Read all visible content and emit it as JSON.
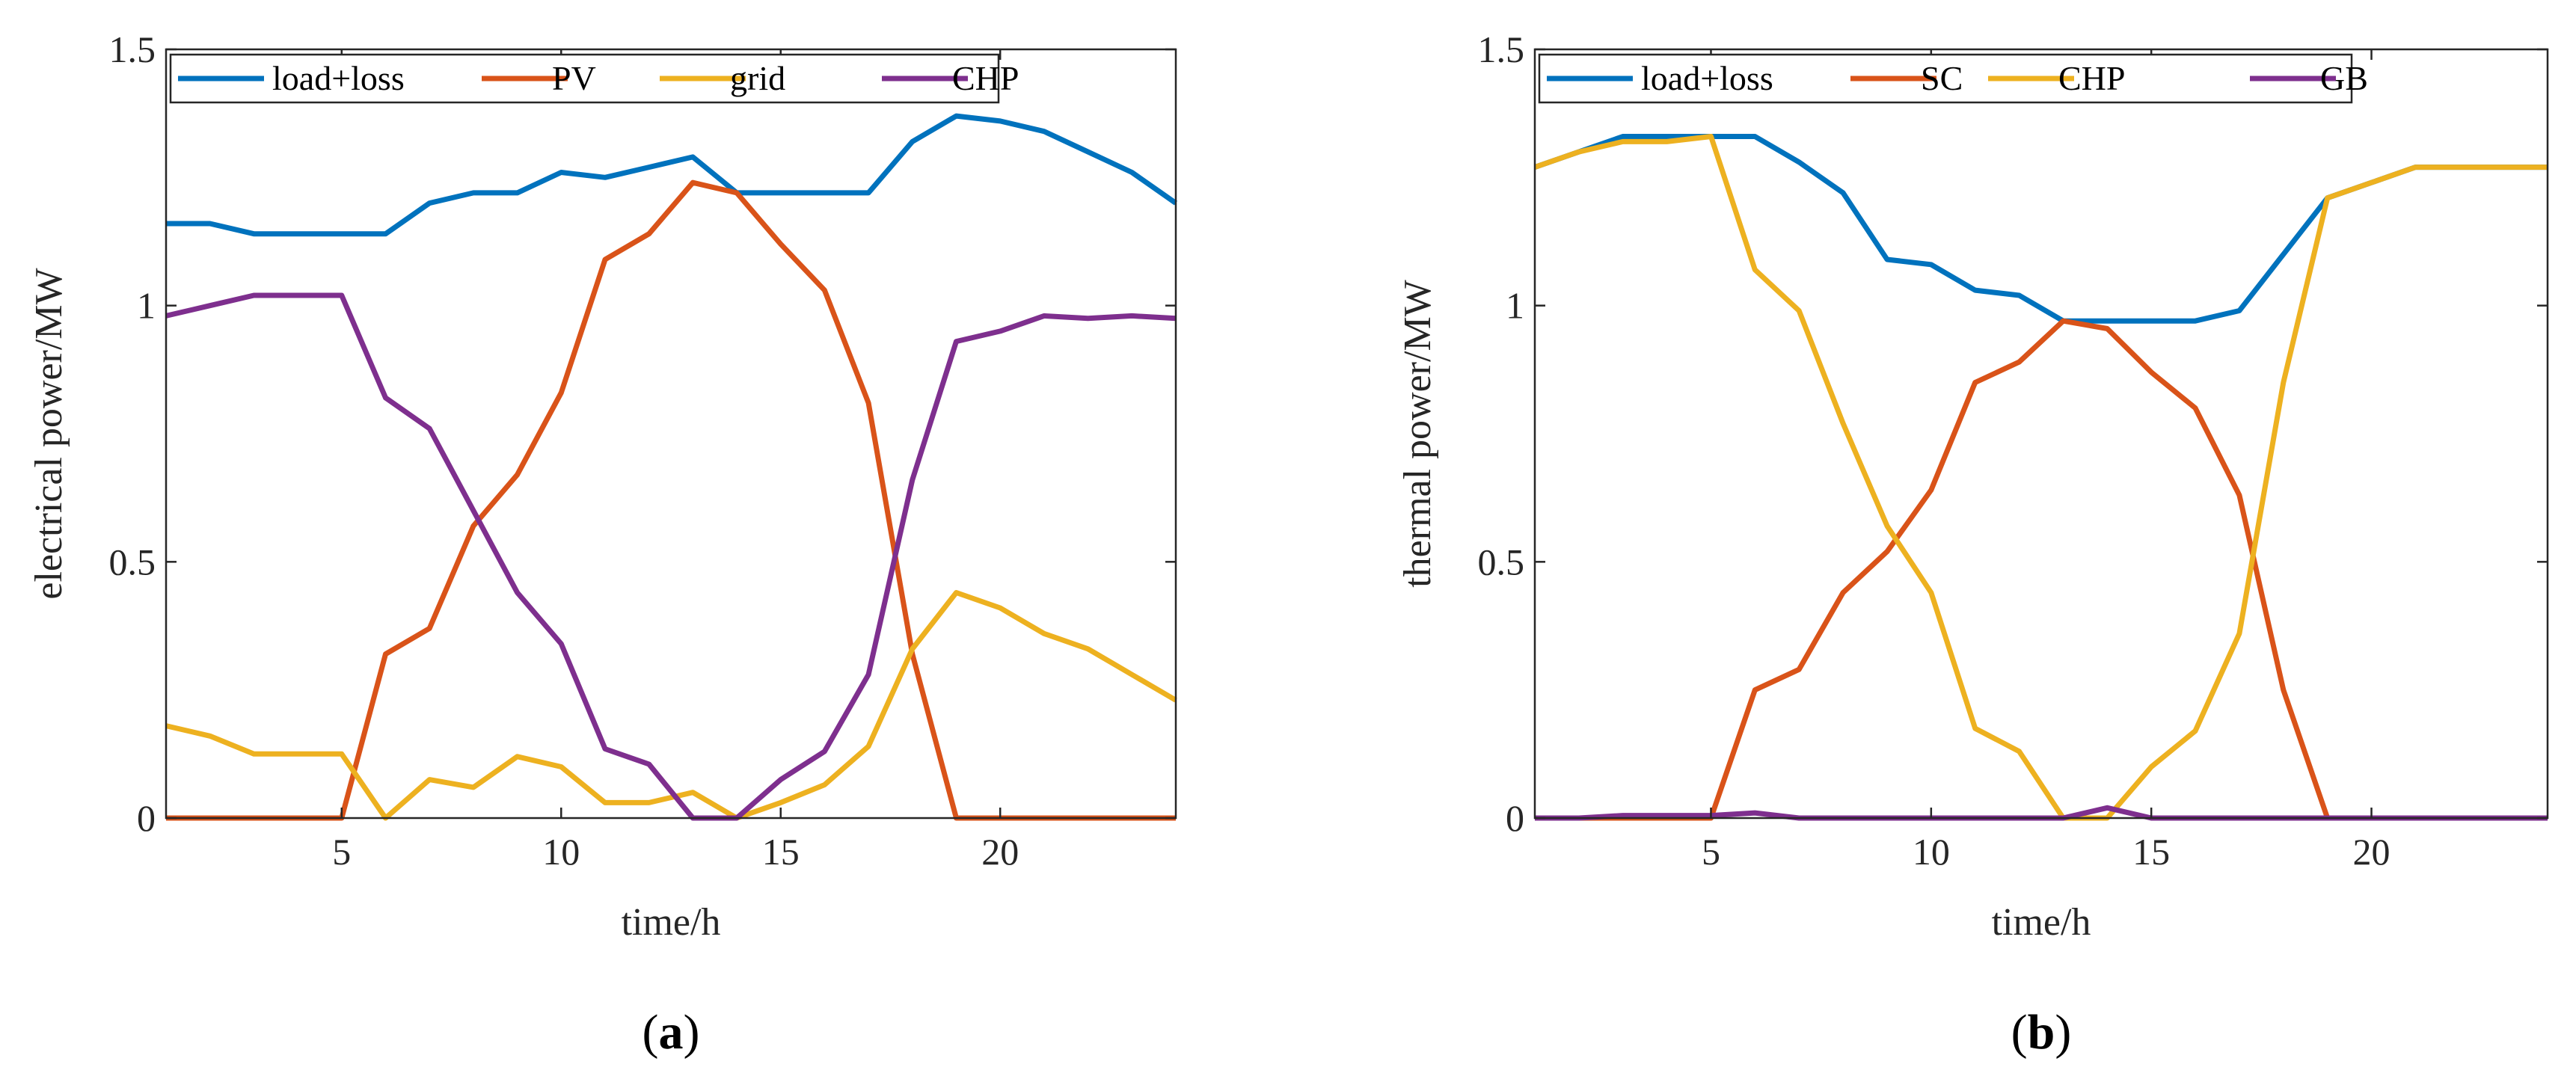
{
  "chart_data": [
    {
      "type": "line",
      "panel_label": "a",
      "xlabel": "time/h",
      "ylabel": "electrical power/MW",
      "xlim": [
        1,
        24
      ],
      "ylim": [
        0,
        1.5
      ],
      "xticks": [
        5,
        10,
        15,
        20
      ],
      "yticks": [
        0,
        0.5,
        1,
        1.5
      ],
      "ytick_labels": [
        "0",
        "0.5",
        "1",
        "1.5"
      ],
      "legend_position": "top",
      "x": [
        1,
        2,
        3,
        4,
        5,
        6,
        7,
        8,
        9,
        10,
        11,
        12,
        13,
        14,
        15,
        16,
        17,
        18,
        19,
        20,
        21,
        22,
        23,
        24
      ],
      "series": [
        {
          "name": "load+loss",
          "color": "#0072BD",
          "values": [
            1.16,
            1.16,
            1.14,
            1.14,
            1.14,
            1.14,
            1.2,
            1.22,
            1.22,
            1.26,
            1.25,
            1.27,
            1.29,
            1.22,
            1.22,
            1.22,
            1.22,
            1.32,
            1.37,
            1.36,
            1.34,
            1.3,
            1.26,
            1.2
          ]
        },
        {
          "name": "PV",
          "color": "#D95319",
          "values": [
            0,
            0,
            0,
            0,
            0,
            0.32,
            0.37,
            0.57,
            0.67,
            0.83,
            1.09,
            1.14,
            1.24,
            1.22,
            1.12,
            1.03,
            0.81,
            0.32,
            0,
            0,
            0,
            0,
            0,
            0
          ]
        },
        {
          "name": "grid",
          "color": "#EDB120",
          "values": [
            0.18,
            0.16,
            0.125,
            0.125,
            0.125,
            0,
            0.075,
            0.06,
            0.12,
            0.1,
            0.03,
            0.03,
            0.05,
            0,
            0.03,
            0.065,
            0.14,
            0.33,
            0.44,
            0.41,
            0.36,
            0.33,
            0.28,
            0.23
          ]
        },
        {
          "name": "CHP",
          "color": "#7E2F8E",
          "values": [
            0.98,
            1.0,
            1.02,
            1.02,
            1.02,
            0.82,
            0.76,
            0.6,
            0.44,
            0.34,
            0.135,
            0.105,
            0,
            0,
            0.075,
            0.13,
            0.28,
            0.66,
            0.93,
            0.95,
            0.98,
            0.975,
            0.98,
            0.975
          ]
        }
      ]
    },
    {
      "type": "line",
      "panel_label": "b",
      "xlabel": "time/h",
      "ylabel": "thermal power/MW",
      "xlim": [
        1,
        24
      ],
      "ylim": [
        0,
        1.5
      ],
      "xticks": [
        5,
        10,
        15,
        20
      ],
      "yticks": [
        0,
        0.5,
        1,
        1.5
      ],
      "ytick_labels": [
        "0",
        "0.5",
        "1",
        "1.5"
      ],
      "legend_position": "top",
      "x": [
        1,
        2,
        3,
        4,
        5,
        6,
        7,
        8,
        9,
        10,
        11,
        12,
        13,
        14,
        15,
        16,
        17,
        18,
        19,
        20,
        21,
        22,
        23,
        24
      ],
      "series": [
        {
          "name": "load+loss",
          "color": "#0072BD",
          "values": [
            1.27,
            1.3,
            1.33,
            1.33,
            1.33,
            1.33,
            1.28,
            1.22,
            1.09,
            1.08,
            1.03,
            1.02,
            0.97,
            0.97,
            0.97,
            0.97,
            0.99,
            1.1,
            1.21,
            1.24,
            1.27,
            1.27,
            1.27,
            1.27
          ]
        },
        {
          "name": "SC",
          "color": "#D95319",
          "values": [
            0,
            0,
            0,
            0,
            0,
            0.25,
            0.29,
            0.44,
            0.52,
            0.64,
            0.85,
            0.89,
            0.97,
            0.955,
            0.87,
            0.8,
            0.63,
            0.25,
            0,
            0,
            0,
            0,
            0,
            0
          ]
        },
        {
          "name": "CHP",
          "color": "#EDB120",
          "values": [
            1.27,
            1.3,
            1.32,
            1.32,
            1.33,
            1.07,
            0.99,
            0.77,
            0.57,
            0.44,
            0.175,
            0.13,
            0,
            0,
            0.1,
            0.17,
            0.36,
            0.85,
            1.21,
            1.24,
            1.27,
            1.27,
            1.27,
            1.27
          ]
        },
        {
          "name": "GB",
          "color": "#7E2F8E",
          "values": [
            0,
            0,
            0.005,
            0.005,
            0.005,
            0.01,
            0,
            0,
            0,
            0,
            0,
            0,
            0,
            0.02,
            0,
            0,
            0,
            0,
            0,
            0,
            0,
            0,
            0,
            0
          ]
        }
      ]
    }
  ]
}
